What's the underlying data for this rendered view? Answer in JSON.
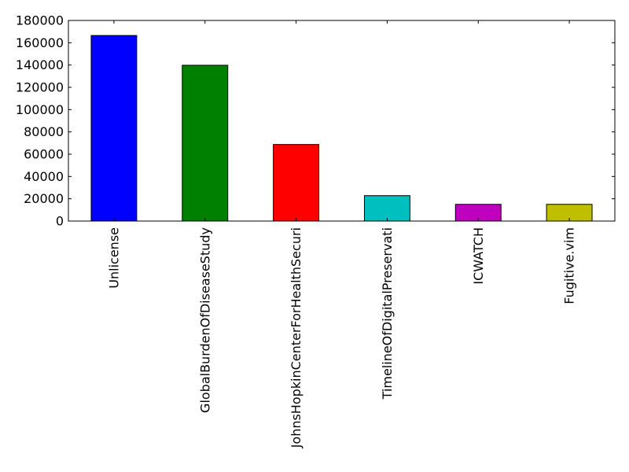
{
  "chart_data": {
    "type": "bar",
    "title": "",
    "xlabel": "",
    "ylabel": "",
    "categories": [
      "Unlicense",
      "GlobalBurdenOfDiseaseStudy",
      "JohnsHopkinCenterForHealthSecuri",
      "TimelineOfDigitalPreservati",
      "ICWATCH",
      "Fugitive.vim"
    ],
    "values": [
      166500,
      139800,
      68700,
      22800,
      15000,
      15000
    ],
    "colors": [
      "#0000ff",
      "#008000",
      "#ff0000",
      "#00bfbf",
      "#bf00bf",
      "#bfbf00"
    ],
    "ylim": [
      0,
      180000
    ],
    "yticks": [
      0,
      20000,
      40000,
      60000,
      80000,
      100000,
      120000,
      140000,
      160000,
      180000
    ],
    "ytick_labels": [
      "0",
      "20000",
      "40000",
      "60000",
      "80000",
      "100000",
      "120000",
      "140000",
      "160000",
      "180000"
    ],
    "grid": false,
    "legend": "none"
  }
}
